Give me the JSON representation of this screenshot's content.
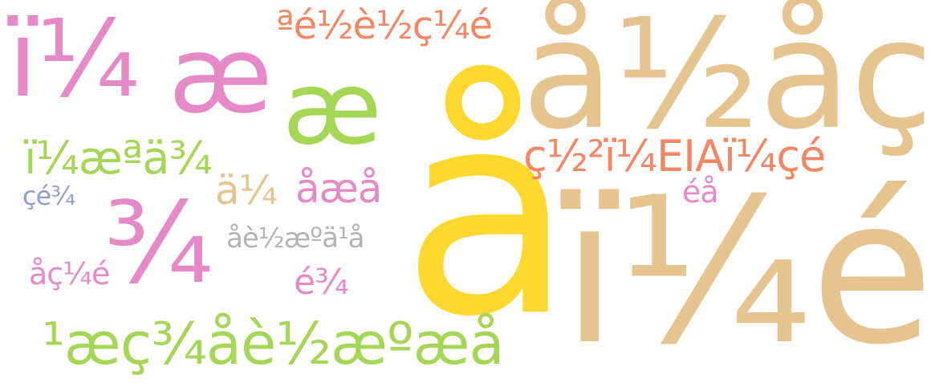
{
  "words": [
    {
      "text": "ï¼",
      "color": "#e58ac6"
    },
    {
      "text": "æ",
      "color": "#e58ac6"
    },
    {
      "text": "æ",
      "color": "#a6d655"
    },
    {
      "text": "ªé½è½ç¼é",
      "color": "#f48763"
    },
    {
      "text": "å½åç",
      "color": "#e5c490"
    },
    {
      "text": "å",
      "color": "#ffd82f"
    },
    {
      "text": "ï¼é",
      "color": "#e5c490"
    },
    {
      "text": "ç½²ï¼EIAï¼çé",
      "color": "#f48763"
    },
    {
      "text": "éå",
      "color": "#e58ac6"
    },
    {
      "text": "ï¼æªä¾",
      "color": "#a6d655"
    },
    {
      "text": "çé¾",
      "color": "#8da0cb"
    },
    {
      "text": "¾",
      "color": "#e58ac6"
    },
    {
      "text": "ä¼",
      "color": "#e5c490"
    },
    {
      "text": "åæå",
      "color": "#e58ac6"
    },
    {
      "text": "åè½æºä¹å",
      "color": "#b3b3b3"
    },
    {
      "text": "åç¼é",
      "color": "#e58ac6"
    },
    {
      "text": "é¾",
      "color": "#e58ac6"
    },
    {
      "text": "¹æç¾åè½æºæå",
      "color": "#a6d655"
    }
  ]
}
